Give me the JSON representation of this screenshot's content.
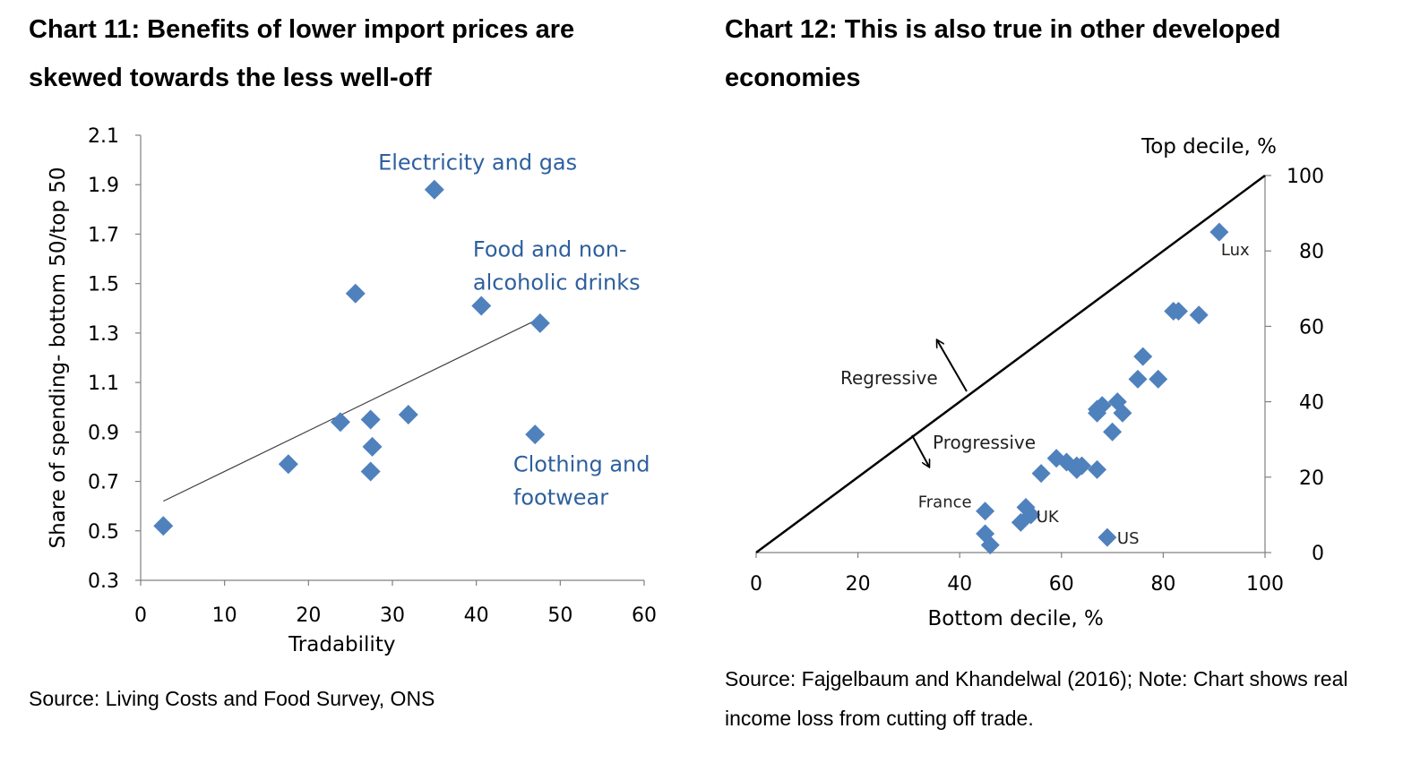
{
  "chart11": {
    "title": "Chart 11:  Benefits of lower import prices are skewed towards the less well-off",
    "source": "Source:  Living Costs and Food Survey, ONS"
  },
  "chart12": {
    "title": "Chart 12:  This is also true in other developed economies",
    "source": "Source:  Fajgelbaum and Khandelwal (2016); Note: Chart shows real income loss from cutting off trade."
  },
  "colors": {
    "marker": "#4f81bd",
    "annotation": "#2e5f9e",
    "line": "#000000"
  },
  "chart_data": [
    {
      "type": "scatter",
      "xlabel": "Tradability",
      "ylabel": "Share of spending- bottom 50/top 50",
      "xlim": [
        0,
        60
      ],
      "ylim": [
        0.3,
        2.1
      ],
      "x_ticks": [
        "0",
        "10",
        "20",
        "30",
        "40",
        "50",
        "60"
      ],
      "y_ticks": [
        "0.3",
        "0.5",
        "0.7",
        "0.9",
        "1.1",
        "1.3",
        "1.5",
        "1.7",
        "1.9",
        "2.1"
      ],
      "points": [
        {
          "x": 2.7,
          "y": 0.52
        },
        {
          "x": 17.6,
          "y": 0.77
        },
        {
          "x": 23.8,
          "y": 0.94
        },
        {
          "x": 25.6,
          "y": 1.46
        },
        {
          "x": 27.4,
          "y": 0.95
        },
        {
          "x": 27.6,
          "y": 0.84
        },
        {
          "x": 27.4,
          "y": 0.74
        },
        {
          "x": 31.9,
          "y": 0.97
        },
        {
          "x": 35.0,
          "y": 1.88
        },
        {
          "x": 40.6,
          "y": 1.41
        },
        {
          "x": 47.6,
          "y": 1.34
        },
        {
          "x": 47.0,
          "y": 0.89
        }
      ],
      "trendline": {
        "x": [
          2.7,
          47.6
        ],
        "y": [
          0.62,
          1.36
        ]
      },
      "annotations": [
        {
          "lines": [
            "Electricity and gas"
          ],
          "x": 28.3,
          "y": 1.96
        },
        {
          "lines": [
            "Food and non-",
            "alcoholic drinks"
          ],
          "x": 39.6,
          "y": 1.61
        },
        {
          "lines": [
            "Clothing and",
            "footwear"
          ],
          "x": 44.4,
          "y": 0.74
        }
      ],
      "grid": false,
      "legend": "none"
    },
    {
      "type": "scatter",
      "xlabel": "Bottom decile, %",
      "ylabel": "Top decile, %",
      "xlim": [
        0,
        100
      ],
      "ylim": [
        0,
        100
      ],
      "x_ticks": [
        "0",
        "20",
        "40",
        "60",
        "80",
        "100"
      ],
      "y_ticks": [
        "0",
        "20",
        "40",
        "60",
        "80",
        "100"
      ],
      "y_axis_side": "right",
      "points": [
        {
          "x": 91,
          "y": 85,
          "label": "Lux"
        },
        {
          "x": 82,
          "y": 64
        },
        {
          "x": 83,
          "y": 64
        },
        {
          "x": 87,
          "y": 63
        },
        {
          "x": 76,
          "y": 52
        },
        {
          "x": 75,
          "y": 46
        },
        {
          "x": 79,
          "y": 46
        },
        {
          "x": 67,
          "y": 38
        },
        {
          "x": 68,
          "y": 39
        },
        {
          "x": 67,
          "y": 37
        },
        {
          "x": 71,
          "y": 40
        },
        {
          "x": 72,
          "y": 37
        },
        {
          "x": 70,
          "y": 32
        },
        {
          "x": 59,
          "y": 25
        },
        {
          "x": 61,
          "y": 24
        },
        {
          "x": 63,
          "y": 23
        },
        {
          "x": 64,
          "y": 23
        },
        {
          "x": 63,
          "y": 22
        },
        {
          "x": 56,
          "y": 21
        },
        {
          "x": 67,
          "y": 22
        },
        {
          "x": 45,
          "y": 11,
          "label": "France"
        },
        {
          "x": 53,
          "y": 12
        },
        {
          "x": 54,
          "y": 10,
          "label": "UK"
        },
        {
          "x": 52,
          "y": 8
        },
        {
          "x": 45,
          "y": 5
        },
        {
          "x": 46,
          "y": 2
        },
        {
          "x": 69,
          "y": 4,
          "label": "US"
        }
      ],
      "reference_line": {
        "x": [
          0,
          100
        ],
        "y": [
          0,
          100
        ]
      },
      "annotations": [
        "Regressive",
        "Progressive"
      ],
      "grid": false,
      "legend": "none"
    }
  ]
}
